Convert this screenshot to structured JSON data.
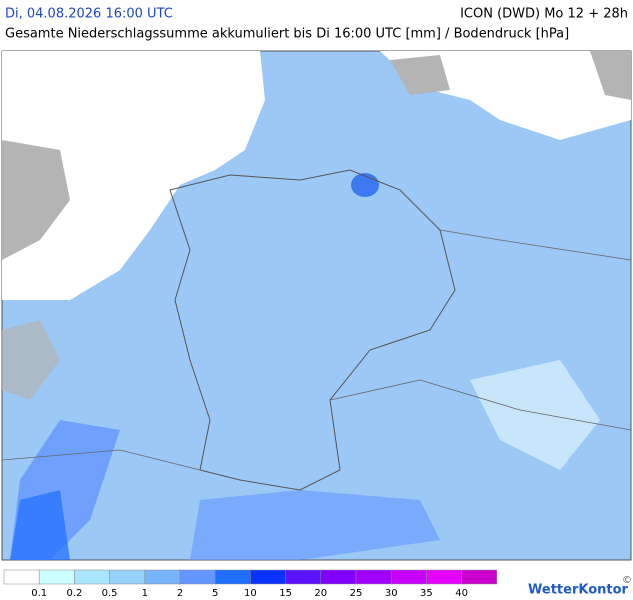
{
  "header": {
    "datetime": "Di, 04.08.2026 16:00 UTC",
    "model": "ICON (DWD) Mo 12 + 28h",
    "subtitle": "Gesamte Niederschlagssumme akkumuliert bis Di 16:00 UTC [mm] / Bodendruck [hPa]"
  },
  "legend": {
    "colors": [
      "#ffffff",
      "#ccffff",
      "#aae6ff",
      "#96d2fa",
      "#78b4fa",
      "#6496ff",
      "#1e6eff",
      "#0a32ff",
      "#5a14ff",
      "#8200ff",
      "#a000ff",
      "#c800ff",
      "#e600ff",
      "#cc00cc"
    ],
    "labels": [
      0.1,
      0.2,
      0.5,
      1,
      2,
      5,
      10,
      15,
      20,
      25,
      30,
      35,
      40
    ]
  },
  "logo": "WetterKontor",
  "copyright": "©"
}
